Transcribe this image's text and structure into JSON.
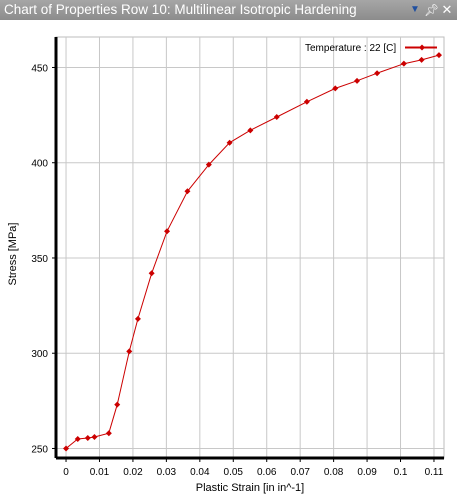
{
  "window": {
    "title": "Chart of Properties Row 10: Multilinear Isotropic Hardening",
    "dropdown_icon": "chevron-down-icon",
    "pin_icon": "pin-icon",
    "close_icon": "close-icon"
  },
  "chart_data": {
    "type": "line",
    "title": "",
    "xlabel": "Plastic Strain  [in in^-1]",
    "ylabel": "Stress  [MPa]",
    "xlim": [
      -0.003,
      0.113
    ],
    "ylim": [
      245,
      466
    ],
    "xticks": [
      0,
      0.01,
      0.02,
      0.03,
      0.04,
      0.05,
      0.06,
      0.07,
      0.08,
      0.09,
      0.1,
      0.11
    ],
    "xtick_labels": [
      "0",
      "0.01",
      "0.02",
      "0.03",
      "0.04",
      "0.05",
      "0.06",
      "0.07",
      "0.08",
      "0.09",
      "0.1",
      "0.11"
    ],
    "yticks": [
      250,
      300,
      350,
      400,
      450
    ],
    "ytick_labels": [
      "250",
      "300",
      "350",
      "400",
      "450"
    ],
    "grid": true,
    "legend_position": "top-right",
    "series": [
      {
        "name": "Temperature : 22 [C]",
        "color": "#cc0000",
        "x": [
          0,
          0.0035,
          0.0065,
          0.0085,
          0.0128,
          0.0153,
          0.0189,
          0.0215,
          0.0256,
          0.0302,
          0.0363,
          0.0427,
          0.0489,
          0.0551,
          0.063,
          0.072,
          0.0805,
          0.087,
          0.093,
          0.101,
          0.1063,
          0.1115
        ],
        "y": [
          250,
          255,
          255.5,
          256,
          258,
          273,
          301,
          318,
          342,
          364,
          385,
          399,
          410.5,
          417,
          424,
          432,
          439,
          443,
          447,
          452,
          454,
          456.5
        ]
      }
    ]
  }
}
